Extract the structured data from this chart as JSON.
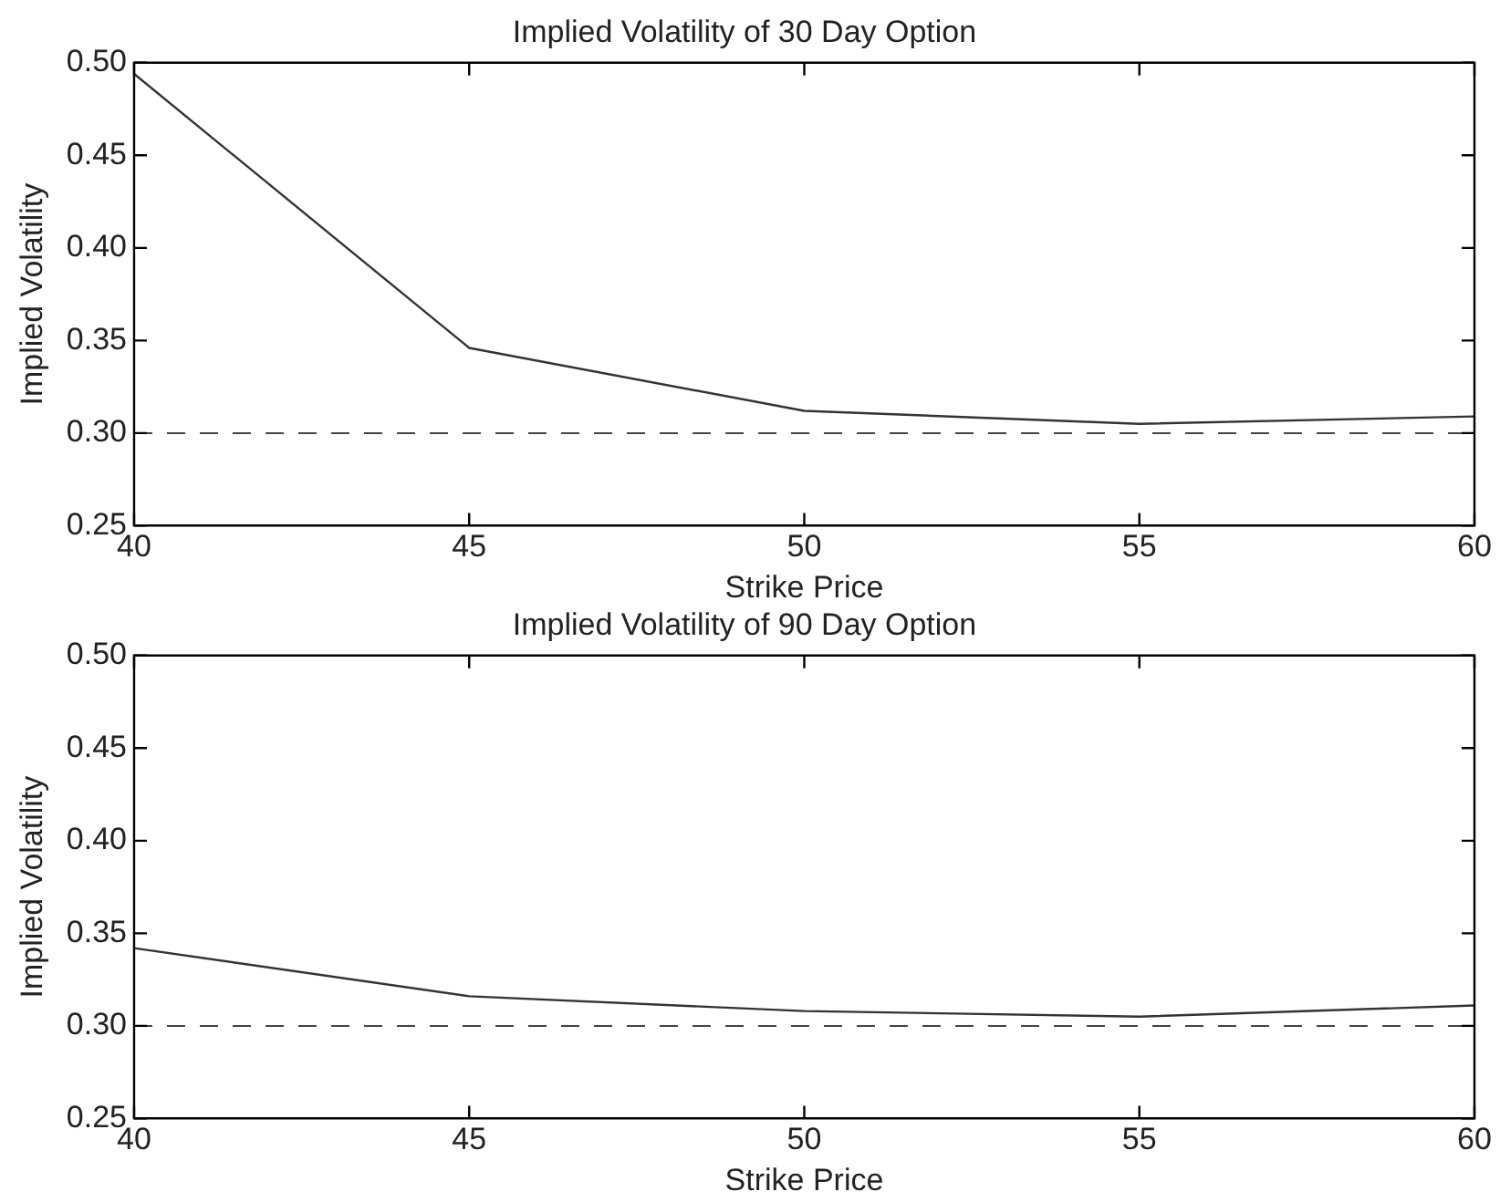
{
  "chart_data": [
    {
      "type": "line",
      "title": "Implied Volatility of 30 Day Option",
      "xlabel": "Strike Price",
      "ylabel": "Implied Volatility",
      "x": [
        40,
        45,
        50,
        55,
        60
      ],
      "series": [
        {
          "color": "#333333",
          "values": [
            0.494,
            0.346,
            0.312,
            0.305,
            0.309
          ]
        }
      ],
      "xlim": [
        40,
        60
      ],
      "xticks": [
        40,
        45,
        50,
        55,
        60
      ],
      "ylim": [
        0.25,
        0.5
      ],
      "yticks": [
        0.25,
        {
          "value": 0.3,
          "label": "0.30"
        },
        0.35,
        {
          "value": 0.4,
          "label": "0.40"
        },
        0.45,
        {
          "value": 0.5,
          "label": "0.50"
        }
      ],
      "ref_lines": [
        {
          "axis": "y",
          "value": 0.3,
          "color": "#444444",
          "line_style": "dashed"
        }
      ],
      "grid": false,
      "legend": false,
      "marker": "none",
      "line_style": "solid"
    },
    {
      "type": "line",
      "title": "Implied Volatility of 90 Day Option",
      "xlabel": "Strike Price",
      "ylabel": "Implied Volatility",
      "x": [
        40,
        45,
        50,
        55,
        60
      ],
      "series": [
        {
          "color": "#333333",
          "values": [
            0.342,
            0.316,
            0.308,
            0.305,
            0.311
          ]
        }
      ],
      "xlim": [
        40,
        60
      ],
      "xticks": [
        40,
        45,
        50,
        55,
        60
      ],
      "ylim": [
        0.25,
        0.5
      ],
      "yticks": [
        0.25,
        {
          "value": 0.3,
          "label": "0.30"
        },
        0.35,
        {
          "value": 0.4,
          "label": "0.40"
        },
        0.45,
        {
          "value": 0.5,
          "label": "0.50"
        }
      ],
      "ref_lines": [
        {
          "axis": "y",
          "value": 0.3,
          "color": "#444444",
          "line_style": "dashed"
        }
      ],
      "grid": false,
      "legend": false,
      "marker": "none",
      "line_style": "solid"
    }
  ]
}
